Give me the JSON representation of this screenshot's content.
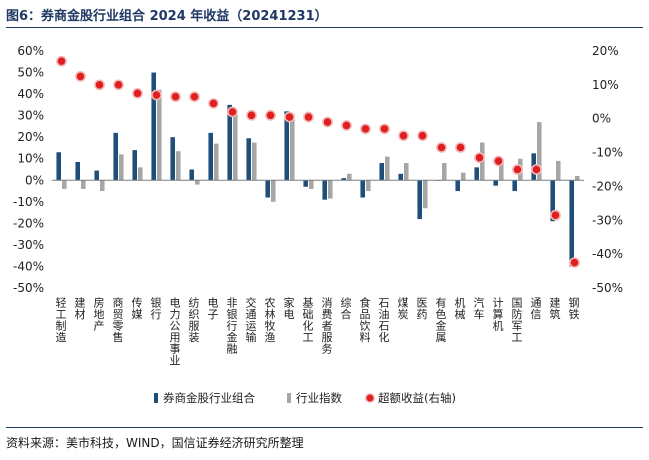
{
  "header": {
    "title": "图6：券商金股行业组合 2024 年收益（20241231）"
  },
  "footer": {
    "source": "资料来源：美市科技，WIND，国信证券经济研究所整理"
  },
  "colors": {
    "bar1": "#1f4e79",
    "bar2": "#a6a6a6",
    "dot": "#e02020",
    "dot_edge": "#f2b8b8"
  },
  "chart_data": {
    "type": "bar",
    "categories": [
      "轻工制造",
      "建材",
      "房地产",
      "商贸零售",
      "传媒",
      "银行",
      "电力公用事业",
      "纺织服装",
      "电子",
      "非银行金融",
      "交通运输",
      "农林牧渔",
      "家电",
      "基础化工",
      "消费者服务",
      "综合",
      "食品饮料",
      "石油石化",
      "煤炭",
      "医药",
      "有色金属",
      "机械",
      "汽车",
      "计算机",
      "国防军工",
      "通信",
      "建筑",
      "钢铁"
    ],
    "series": [
      {
        "name": "券商金股行业组合",
        "axis": "left",
        "chart": "bar",
        "values": [
          13,
          8.5,
          4.5,
          22,
          14,
          50,
          20,
          5,
          22,
          35,
          19.5,
          -8,
          32,
          -3,
          -9,
          1,
          -8,
          8,
          3,
          -18,
          0,
          -5,
          6,
          -2.5,
          -5,
          12.5,
          -19,
          -40
        ]
      },
      {
        "name": "行业指数",
        "axis": "left",
        "chart": "bar",
        "values": [
          -4,
          -4,
          -5,
          12,
          6,
          42,
          13.5,
          -2,
          17,
          31,
          17.5,
          -10,
          31,
          -4,
          -8.5,
          3,
          -5,
          11,
          8,
          -13,
          8,
          3.5,
          17.5,
          8,
          10,
          27,
          9,
          2
        ]
      },
      {
        "name": "超额收益(右轴)",
        "axis": "right",
        "chart": "scatter",
        "values": [
          17,
          12.5,
          10,
          10,
          7.5,
          7,
          6.5,
          6.5,
          4.5,
          2,
          1,
          1,
          0.5,
          0.5,
          -1,
          -2,
          -3,
          -3,
          -5,
          -5,
          -8.5,
          -8.5,
          -11.5,
          -12.5,
          -15,
          -15,
          -28.5,
          -42.5
        ]
      }
    ],
    "y_left": {
      "min": -50,
      "max": 60,
      "step": 10,
      "format": "percent"
    },
    "y_right": {
      "min": -50,
      "max": 20,
      "step": 10,
      "format": "percent"
    },
    "legend_position": "bottom",
    "grid": false,
    "xlabel": "",
    "ylabel": ""
  }
}
